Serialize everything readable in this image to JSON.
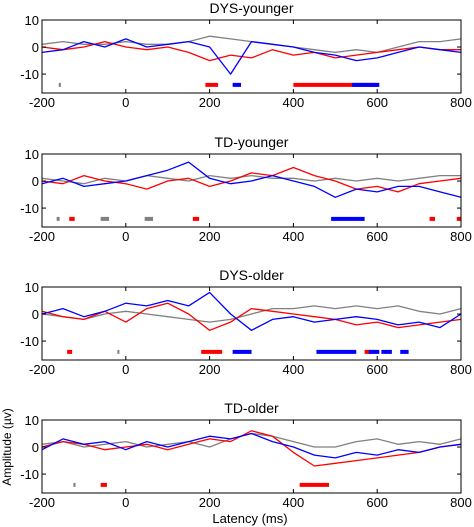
{
  "figure": {
    "xlabel": "Latency (ms)",
    "ylabel": "Amplitude (µv)"
  },
  "chart_data": [
    {
      "type": "line",
      "title": "DYS-younger",
      "xlim": [
        -200,
        800
      ],
      "ylim": [
        -17,
        10
      ],
      "xticks": [
        -200,
        0,
        200,
        400,
        600,
        800
      ],
      "yticks": [
        10,
        0,
        -10
      ],
      "series": [
        {
          "color": "#808080",
          "x": [
            -200,
            -150,
            -100,
            -50,
            0,
            50,
            100,
            150,
            200,
            250,
            300,
            350,
            400,
            450,
            500,
            550,
            600,
            650,
            700,
            750,
            800
          ],
          "y": [
            1,
            2,
            1,
            1,
            2,
            1,
            1,
            2,
            4,
            3,
            2,
            1,
            0,
            -1,
            -2,
            -1,
            -2,
            0,
            2,
            2,
            3
          ]
        },
        {
          "color": "#ff0000",
          "x": [
            -200,
            -150,
            -100,
            -50,
            0,
            50,
            100,
            150,
            200,
            250,
            300,
            350,
            400,
            450,
            500,
            550,
            600,
            650,
            700,
            750,
            800
          ],
          "y": [
            0,
            -1,
            0,
            2,
            0,
            -1,
            0,
            -2,
            -5,
            -3,
            -4,
            -1,
            -3,
            -2,
            -4,
            -3,
            -2,
            -1,
            0,
            -1,
            -1
          ]
        },
        {
          "color": "#0000ff",
          "x": [
            -200,
            -150,
            -100,
            -50,
            0,
            50,
            100,
            150,
            200,
            250,
            300,
            350,
            400,
            450,
            500,
            550,
            600,
            650,
            700,
            750,
            800
          ],
          "y": [
            -2,
            -1,
            2,
            0,
            3,
            0,
            1,
            2,
            0,
            -10,
            2,
            1,
            0,
            -2,
            -3,
            -5,
            -4,
            -2,
            0,
            -1,
            -2
          ]
        }
      ],
      "significance_bars": [
        {
          "color": "#808080",
          "x": [
            -160,
            -155
          ]
        },
        {
          "color": "#ff0000",
          "x": [
            190,
            220
          ]
        },
        {
          "color": "#0000ff",
          "x": [
            255,
            275
          ]
        },
        {
          "color": "#ff0000",
          "x": [
            400,
            600
          ]
        },
        {
          "color": "#0000ff",
          "x": [
            540,
            605
          ]
        }
      ]
    },
    {
      "type": "line",
      "title": "TD-younger",
      "xlim": [
        -200,
        800
      ],
      "ylim": [
        -17,
        10
      ],
      "xticks": [
        -200,
        0,
        200,
        400,
        600,
        800
      ],
      "yticks": [
        10,
        0,
        -10
      ],
      "series": [
        {
          "color": "#808080",
          "x": [
            -200,
            -150,
            -100,
            -50,
            0,
            50,
            100,
            150,
            200,
            250,
            300,
            350,
            400,
            450,
            500,
            550,
            600,
            650,
            700,
            750,
            800
          ],
          "y": [
            1,
            0,
            -1,
            1,
            0,
            2,
            1,
            0,
            2,
            1,
            2,
            1,
            1,
            0,
            1,
            0,
            1,
            0,
            1,
            2,
            2
          ]
        },
        {
          "color": "#ff0000",
          "x": [
            -200,
            -150,
            -100,
            -50,
            0,
            50,
            100,
            150,
            200,
            250,
            300,
            350,
            400,
            450,
            500,
            550,
            600,
            650,
            700,
            750,
            800
          ],
          "y": [
            0,
            -1,
            2,
            0,
            -1,
            -3,
            0,
            1,
            -2,
            0,
            3,
            2,
            5,
            2,
            0,
            -3,
            -2,
            -4,
            -1,
            0,
            1
          ]
        },
        {
          "color": "#0000ff",
          "x": [
            -200,
            -150,
            -100,
            -50,
            0,
            50,
            100,
            150,
            200,
            250,
            300,
            350,
            400,
            450,
            500,
            550,
            600,
            650,
            700,
            750,
            800
          ],
          "y": [
            -1,
            1,
            -2,
            -1,
            0,
            2,
            4,
            7,
            1,
            -1,
            0,
            2,
            0,
            -2,
            -6,
            -3,
            -4,
            -2,
            -2,
            -4,
            -6
          ]
        }
      ],
      "significance_bars": [
        {
          "color": "#808080",
          "x": [
            -165,
            -158
          ]
        },
        {
          "color": "#ff0000",
          "x": [
            -135,
            -122
          ]
        },
        {
          "color": "#808080",
          "x": [
            -60,
            -40
          ]
        },
        {
          "color": "#808080",
          "x": [
            45,
            65
          ]
        },
        {
          "color": "#ff0000",
          "x": [
            160,
            175
          ]
        },
        {
          "color": "#0000ff",
          "x": [
            490,
            570
          ]
        },
        {
          "color": "#ff0000",
          "x": [
            725,
            738
          ]
        },
        {
          "color": "#ff0000",
          "x": [
            790,
            800
          ]
        }
      ]
    },
    {
      "type": "line",
      "title": "DYS-older",
      "xlim": [
        -200,
        800
      ],
      "ylim": [
        -17,
        10
      ],
      "xticks": [
        -200,
        0,
        200,
        400,
        600,
        800
      ],
      "yticks": [
        10,
        0,
        -10
      ],
      "series": [
        {
          "color": "#808080",
          "x": [
            -200,
            -150,
            -100,
            -50,
            0,
            50,
            100,
            150,
            200,
            250,
            300,
            350,
            400,
            450,
            500,
            550,
            600,
            650,
            700,
            750,
            800
          ],
          "y": [
            0,
            -1,
            -2,
            0,
            1,
            0,
            -1,
            -2,
            -3,
            -2,
            0,
            2,
            2,
            3,
            2,
            3,
            2,
            3,
            1,
            0,
            2
          ]
        },
        {
          "color": "#ff0000",
          "x": [
            -200,
            -150,
            -100,
            -50,
            0,
            50,
            100,
            150,
            200,
            250,
            300,
            350,
            400,
            450,
            500,
            550,
            600,
            650,
            700,
            750,
            800
          ],
          "y": [
            1,
            -1,
            -2,
            1,
            -3,
            2,
            4,
            0,
            -6,
            -3,
            2,
            1,
            0,
            -1,
            -2,
            -4,
            -3,
            -5,
            -4,
            -3,
            -2
          ]
        },
        {
          "color": "#0000ff",
          "x": [
            -200,
            -150,
            -100,
            -50,
            0,
            50,
            100,
            150,
            200,
            250,
            300,
            350,
            400,
            450,
            500,
            550,
            600,
            650,
            700,
            750,
            800
          ],
          "y": [
            0,
            2,
            -1,
            1,
            4,
            3,
            5,
            3,
            8,
            0,
            -6,
            -2,
            -1,
            -3,
            -2,
            -1,
            -2,
            -4,
            -3,
            -5,
            0
          ]
        }
      ],
      "significance_bars": [
        {
          "color": "#ff0000",
          "x": [
            -140,
            -128
          ]
        },
        {
          "color": "#808080",
          "x": [
            -20,
            -18
          ]
        },
        {
          "color": "#ff0000",
          "x": [
            180,
            230
          ]
        },
        {
          "color": "#0000ff",
          "x": [
            255,
            300
          ]
        },
        {
          "color": "#0000ff",
          "x": [
            455,
            550
          ]
        },
        {
          "color": "#ff0000",
          "x": [
            570,
            590
          ]
        },
        {
          "color": "#0000ff",
          "x": [
            580,
            605
          ]
        },
        {
          "color": "#0000ff",
          "x": [
            610,
            635
          ]
        },
        {
          "color": "#0000ff",
          "x": [
            655,
            675
          ]
        }
      ]
    },
    {
      "type": "line",
      "title": "TD-older",
      "xlim": [
        -200,
        800
      ],
      "ylim": [
        -17,
        10
      ],
      "xticks": [
        -200,
        0,
        200,
        400,
        600,
        800
      ],
      "yticks": [
        10,
        0,
        -10
      ],
      "series": [
        {
          "color": "#808080",
          "x": [
            -200,
            -150,
            -100,
            -50,
            0,
            50,
            100,
            150,
            200,
            250,
            300,
            350,
            400,
            450,
            500,
            550,
            600,
            650,
            700,
            750,
            800
          ],
          "y": [
            1,
            2,
            0,
            1,
            2,
            0,
            1,
            2,
            0,
            3,
            5,
            4,
            2,
            0,
            0,
            2,
            3,
            1,
            2,
            1,
            3
          ]
        },
        {
          "color": "#ff0000",
          "x": [
            -200,
            -150,
            -100,
            -50,
            0,
            50,
            100,
            150,
            200,
            250,
            300,
            350,
            400,
            450,
            500,
            550,
            600,
            650,
            700,
            750,
            800
          ],
          "y": [
            0,
            2,
            1,
            -1,
            0,
            1,
            -1,
            1,
            3,
            2,
            6,
            4,
            -2,
            -7,
            -6,
            -5,
            -4,
            -3,
            -2,
            0,
            1
          ]
        },
        {
          "color": "#0000ff",
          "x": [
            -200,
            -150,
            -100,
            -50,
            0,
            50,
            100,
            150,
            200,
            250,
            300,
            350,
            400,
            450,
            500,
            550,
            600,
            650,
            700,
            750,
            800
          ],
          "y": [
            -1,
            3,
            1,
            2,
            -1,
            2,
            0,
            2,
            4,
            3,
            5,
            2,
            0,
            -3,
            -4,
            -2,
            -3,
            -1,
            -2,
            0,
            1
          ]
        }
      ],
      "significance_bars": [
        {
          "color": "#808080",
          "x": [
            -125,
            -120
          ]
        },
        {
          "color": "#ff0000",
          "x": [
            -60,
            -45
          ]
        },
        {
          "color": "#ff0000",
          "x": [
            415,
            485
          ]
        }
      ]
    }
  ]
}
